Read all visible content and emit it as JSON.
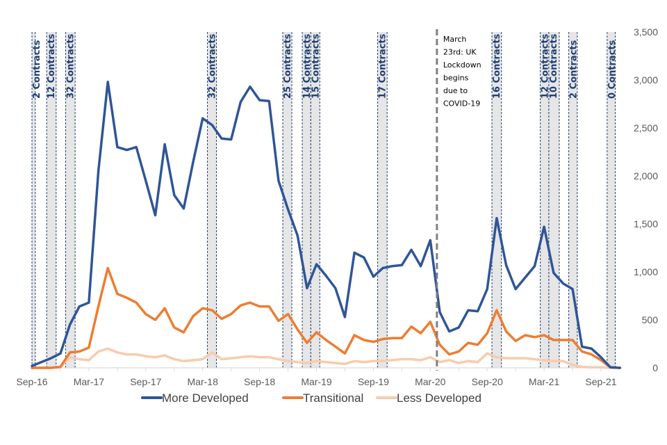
{
  "chart_data": {
    "type": "line",
    "title": "",
    "xlabel": "",
    "ylabel": "",
    "ylim": [
      0,
      3500
    ],
    "y_ticks": [
      "0",
      "500",
      "1,000",
      "1,500",
      "2,000",
      "2,500",
      "3,000",
      "3,500"
    ],
    "y_tick_values": [
      0,
      500,
      1000,
      1500,
      2000,
      2500,
      3000,
      3500
    ],
    "y_axis_side": "right",
    "x_tick_labels": [
      "Sep-16",
      "Mar-17",
      "Sep-17",
      "Mar-18",
      "Sep-18",
      "Mar-19",
      "Sep-19",
      "Mar-20",
      "Sep-20",
      "Mar-21",
      "Sep-21"
    ],
    "x_tick_label_month_index": [
      0,
      6,
      12,
      18,
      24,
      30,
      36,
      42,
      48,
      54,
      60
    ],
    "x_month_count": 63,
    "x": [
      "Sep-16",
      "Oct-16",
      "Nov-16",
      "Dec-16",
      "Jan-17",
      "Feb-17",
      "Mar-17",
      "Apr-17",
      "May-17",
      "Jun-17",
      "Jul-17",
      "Aug-17",
      "Sep-17",
      "Oct-17",
      "Nov-17",
      "Dec-17",
      "Jan-18",
      "Feb-18",
      "Mar-18",
      "Apr-18",
      "May-18",
      "Jun-18",
      "Jul-18",
      "Aug-18",
      "Sep-18",
      "Oct-18",
      "Nov-18",
      "Dec-18",
      "Jan-19",
      "Feb-19",
      "Mar-19",
      "Apr-19",
      "May-19",
      "Jun-19",
      "Jul-19",
      "Aug-19",
      "Sep-19",
      "Oct-19",
      "Nov-19",
      "Dec-19",
      "Jan-20",
      "Feb-20",
      "Mar-20",
      "Apr-20",
      "May-20",
      "Jun-20",
      "Jul-20",
      "Aug-20",
      "Sep-20",
      "Oct-20",
      "Nov-20",
      "Dec-20",
      "Jan-21",
      "Feb-21",
      "Mar-21",
      "Apr-21",
      "May-21",
      "Jun-21",
      "Jul-21",
      "Aug-21",
      "Sep-21",
      "Oct-21",
      "Nov-21"
    ],
    "series": [
      {
        "name": "More Developed",
        "color": "#2f5597",
        "values": [
          20,
          60,
          100,
          150,
          450,
          640,
          680,
          2050,
          2980,
          2300,
          2270,
          2300,
          1950,
          1590,
          2330,
          1800,
          1660,
          2150,
          2600,
          2530,
          2390,
          2380,
          2770,
          2930,
          2790,
          2780,
          1950,
          1650,
          1380,
          830,
          1080,
          960,
          830,
          530,
          1200,
          1150,
          950,
          1040,
          1060,
          1070,
          1230,
          1060,
          1330,
          580,
          380,
          420,
          600,
          590,
          820,
          1560,
          1070,
          820,
          940,
          1060,
          1470,
          990,
          880,
          820,
          220,
          200,
          110,
          5,
          0
        ]
      },
      {
        "name": "Transitional",
        "color": "#ed7d31",
        "values": [
          0,
          0,
          0,
          10,
          160,
          170,
          210,
          640,
          1040,
          770,
          730,
          680,
          560,
          500,
          620,
          420,
          370,
          540,
          620,
          600,
          510,
          560,
          650,
          680,
          640,
          640,
          490,
          560,
          400,
          260,
          370,
          290,
          220,
          150,
          340,
          290,
          270,
          300,
          310,
          310,
          430,
          360,
          480,
          240,
          140,
          170,
          260,
          240,
          360,
          600,
          380,
          280,
          340,
          320,
          340,
          290,
          290,
          290,
          170,
          140,
          80,
          5,
          0
        ]
      },
      {
        "name": "Less Developed",
        "color": "#f8cbad",
        "values": [
          0,
          0,
          0,
          5,
          110,
          90,
          80,
          170,
          200,
          160,
          140,
          140,
          120,
          110,
          130,
          90,
          70,
          80,
          90,
          160,
          90,
          100,
          110,
          120,
          110,
          110,
          90,
          70,
          60,
          50,
          70,
          60,
          50,
          40,
          70,
          60,
          70,
          70,
          80,
          90,
          90,
          80,
          110,
          60,
          80,
          50,
          70,
          60,
          150,
          110,
          100,
          100,
          100,
          90,
          80,
          70,
          70,
          30,
          10,
          5,
          5,
          0,
          0
        ]
      }
    ],
    "legend": {
      "position": "bottom",
      "entries": [
        "More Developed",
        "Transitional",
        "Less Developed"
      ]
    },
    "contract_bands": [
      {
        "label": "2 Contracts",
        "start_month": 0.0,
        "end_month": 0.35
      },
      {
        "label": "12 Contracts",
        "start_month": 1.55,
        "end_month": 2.55
      },
      {
        "label": "32 Contracts",
        "start_month": 3.55,
        "end_month": 4.55
      },
      {
        "label": "32 Contracts",
        "start_month": 18.5,
        "end_month": 19.45
      },
      {
        "label": "25 Contracts",
        "start_month": 26.45,
        "end_month": 27.4
      },
      {
        "label": "14 Contracts",
        "start_month": 28.5,
        "end_month": 29.4
      },
      {
        "label": "15 Contracts",
        "start_month": 29.4,
        "end_month": 30.35
      },
      {
        "label": "17 Contracts",
        "start_month": 36.45,
        "end_month": 37.45
      },
      {
        "label": "16 Contracts",
        "start_month": 48.5,
        "end_month": 49.5
      },
      {
        "label": "12 Contracts",
        "start_month": 53.6,
        "end_month": 54.5
      },
      {
        "label": "10 Contracts",
        "start_month": 54.5,
        "end_month": 55.6
      },
      {
        "label": "2 Contracts",
        "start_month": 56.6,
        "end_month": 57.5
      },
      {
        "label": "0 Contracts",
        "start_month": 60.65,
        "end_month": 61.5
      }
    ],
    "annotation": {
      "month": 42.7,
      "lines": [
        "March",
        "23rd: UK",
        "Lockdown",
        "begins",
        "due to",
        "COVID-19"
      ]
    },
    "grid": false
  }
}
